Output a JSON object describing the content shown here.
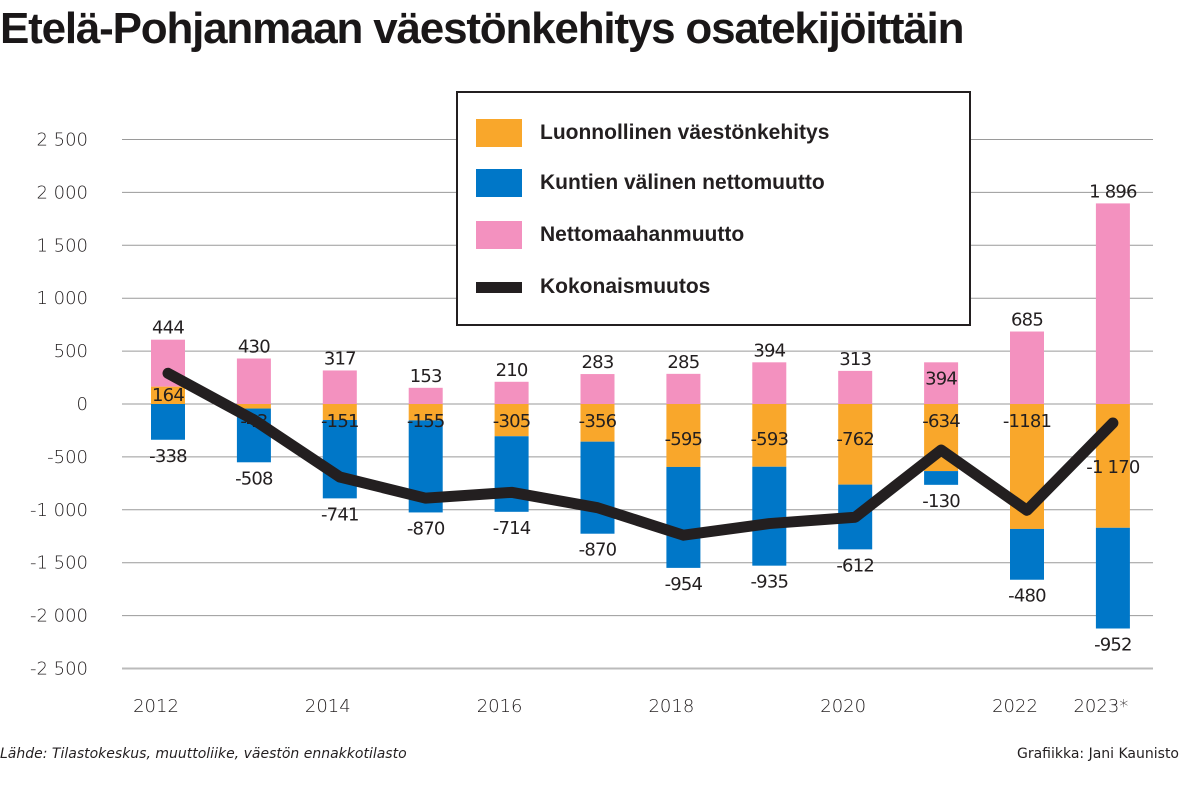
{
  "chart_data": {
    "type": "bar",
    "stacked": true,
    "title": "Etelä-Pohjanmaan väestönkehitys osatekijöittäin",
    "categories": [
      "2012",
      "2013",
      "2014",
      "2015",
      "2016",
      "2017",
      "2018",
      "2019",
      "2020",
      "2021",
      "2022",
      "2023*"
    ],
    "x_tick_labels": [
      "2012",
      "",
      "2014",
      "",
      "2016",
      "",
      "2018",
      "",
      "2020",
      "",
      "2022",
      "2023*"
    ],
    "y_ticks": [
      2500,
      2000,
      1500,
      1000,
      500,
      0,
      -500,
      -1000,
      -1500,
      -2000,
      -2500
    ],
    "y_tick_labels": [
      "2 500",
      "2 000",
      "1 500",
      "1 000",
      "500",
      "0",
      "-500",
      "-1 000",
      "-1 500",
      "-2 000",
      "-2 500"
    ],
    "ylim": [
      -2500,
      2500
    ],
    "grid": true,
    "legend_placement": "top-right",
    "series": [
      {
        "name": "Luonnollinen väestönkehitys",
        "color": "#f9a72b",
        "values": [
          164,
          -43,
          -151,
          -155,
          -305,
          -356,
          -595,
          -593,
          -762,
          -634,
          -1181,
          -1170
        ],
        "labels": [
          "164",
          "-43",
          "-151",
          "-155",
          "-305",
          "-356",
          "-595",
          "-593",
          "-762",
          "-634",
          "-1181",
          "-1 170"
        ]
      },
      {
        "name": "Kuntien välinen nettomuutto",
        "color": "#0077c8",
        "values": [
          -338,
          -508,
          -741,
          -870,
          -714,
          -870,
          -954,
          -935,
          -612,
          -130,
          -480,
          -952
        ],
        "labels": [
          "-338",
          "-508",
          "-741",
          "-870",
          "-714",
          "-870",
          "-954",
          "-935",
          "-612",
          "-130",
          "-480",
          "-952"
        ]
      },
      {
        "name": "Nettomaahanmuutto",
        "color": "#f391bf",
        "values": [
          444,
          430,
          317,
          153,
          210,
          283,
          285,
          394,
          313,
          394,
          685,
          1896
        ],
        "labels": [
          "444",
          "430",
          "317",
          "153",
          "210",
          "283",
          "285",
          "394",
          "313",
          "394",
          "685",
          "1 896"
        ]
      },
      {
        "name": "Kokonaismuutos",
        "type": "line",
        "color": "#231f20",
        "values": [
          290,
          -150,
          -690,
          -890,
          -835,
          -980,
          -1240,
          -1130,
          -1070,
          -435,
          -1005,
          -180
        ]
      }
    ]
  },
  "footer": {
    "source": "Lähde: Tilastokeskus, muuttoliike, väestön ennakkotilasto",
    "credit": "Grafiikka: Jani Kaunisto"
  }
}
